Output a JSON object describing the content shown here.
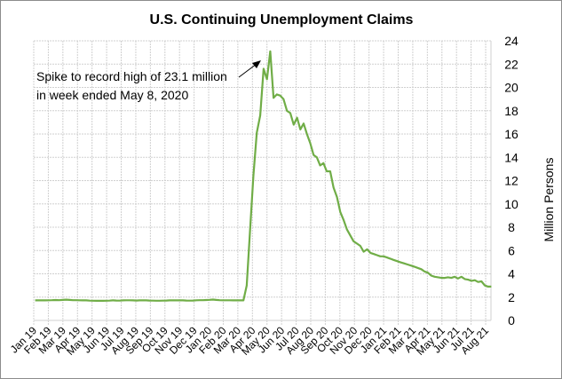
{
  "chart_data": {
    "type": "line",
    "title": "U.S. Continuing Unemployment Claims",
    "xlabel": "",
    "ylabel": "Million Persons",
    "ylim": [
      0,
      24
    ],
    "yticks": [
      0,
      2,
      4,
      6,
      8,
      10,
      12,
      14,
      16,
      18,
      20,
      22,
      24
    ],
    "y_axis_position": "right",
    "grid": true,
    "line_color": "#70ad47",
    "categories": [
      "Jan 19",
      "Feb 19",
      "Mar 19",
      "Apr 19",
      "May 19",
      "Jun 19",
      "Jul 19",
      "Aug 19",
      "Sep 19",
      "Oct 19",
      "Nov 19",
      "Dec 19",
      "Jan 20",
      "Feb 20",
      "Mar 20",
      "Apr 20",
      "May 20",
      "Jun 20",
      "Jul 20",
      "Aug 20",
      "Sep 20",
      "Oct 20",
      "Nov 20",
      "Dec 20",
      "Jan 21",
      "Feb 21",
      "Mar 21",
      "Apr 21",
      "May 21",
      "Jun 21",
      "Jul 21",
      "Aug 21"
    ],
    "annotation": {
      "lines": [
        "Spike to record high of 23.1 million",
        "in week ended May 8, 2020"
      ],
      "points_to": [
        "2020-05-08",
        23.1
      ]
    },
    "points": [
      [
        "2019-01-04",
        1.72
      ],
      [
        "2019-01-11",
        1.72
      ],
      [
        "2019-01-18",
        1.73
      ],
      [
        "2019-01-25",
        1.72
      ],
      [
        "2019-02-01",
        1.73
      ],
      [
        "2019-02-08",
        1.74
      ],
      [
        "2019-02-15",
        1.75
      ],
      [
        "2019-02-22",
        1.74
      ],
      [
        "2019-03-01",
        1.76
      ],
      [
        "2019-03-08",
        1.78
      ],
      [
        "2019-03-15",
        1.76
      ],
      [
        "2019-03-22",
        1.74
      ],
      [
        "2019-03-29",
        1.74
      ],
      [
        "2019-04-05",
        1.73
      ],
      [
        "2019-04-12",
        1.72
      ],
      [
        "2019-04-19",
        1.72
      ],
      [
        "2019-04-26",
        1.7
      ],
      [
        "2019-05-03",
        1.69
      ],
      [
        "2019-05-10",
        1.68
      ],
      [
        "2019-05-17",
        1.68
      ],
      [
        "2019-05-24",
        1.68
      ],
      [
        "2019-05-31",
        1.69
      ],
      [
        "2019-06-07",
        1.7
      ],
      [
        "2019-06-14",
        1.72
      ],
      [
        "2019-06-21",
        1.71
      ],
      [
        "2019-06-28",
        1.7
      ],
      [
        "2019-07-05",
        1.72
      ],
      [
        "2019-07-12",
        1.73
      ],
      [
        "2019-07-19",
        1.73
      ],
      [
        "2019-07-26",
        1.72
      ],
      [
        "2019-08-02",
        1.71
      ],
      [
        "2019-08-09",
        1.72
      ],
      [
        "2019-08-16",
        1.73
      ],
      [
        "2019-08-23",
        1.72
      ],
      [
        "2019-08-30",
        1.71
      ],
      [
        "2019-09-06",
        1.7
      ],
      [
        "2019-09-13",
        1.69
      ],
      [
        "2019-09-20",
        1.69
      ],
      [
        "2019-09-27",
        1.7
      ],
      [
        "2019-10-04",
        1.71
      ],
      [
        "2019-10-11",
        1.72
      ],
      [
        "2019-10-18",
        1.72
      ],
      [
        "2019-10-25",
        1.72
      ],
      [
        "2019-11-01",
        1.72
      ],
      [
        "2019-11-08",
        1.72
      ],
      [
        "2019-11-15",
        1.71
      ],
      [
        "2019-11-22",
        1.7
      ],
      [
        "2019-11-29",
        1.71
      ],
      [
        "2019-12-06",
        1.73
      ],
      [
        "2019-12-13",
        1.74
      ],
      [
        "2019-12-20",
        1.74
      ],
      [
        "2019-12-27",
        1.75
      ],
      [
        "2020-01-03",
        1.77
      ],
      [
        "2020-01-10",
        1.79
      ],
      [
        "2020-01-17",
        1.76
      ],
      [
        "2020-01-24",
        1.74
      ],
      [
        "2020-01-31",
        1.73
      ],
      [
        "2020-02-07",
        1.73
      ],
      [
        "2020-02-14",
        1.73
      ],
      [
        "2020-02-21",
        1.72
      ],
      [
        "2020-02-28",
        1.72
      ],
      [
        "2020-03-06",
        1.72
      ],
      [
        "2020-03-13",
        1.72
      ],
      [
        "2020-03-20",
        3.0
      ],
      [
        "2020-03-27",
        7.8
      ],
      [
        "2020-04-03",
        12.4
      ],
      [
        "2020-04-10",
        16.1
      ],
      [
        "2020-04-17",
        17.6
      ],
      [
        "2020-04-24",
        21.6
      ],
      [
        "2020-05-01",
        20.7
      ],
      [
        "2020-05-08",
        23.1
      ],
      [
        "2020-05-15",
        19.1
      ],
      [
        "2020-05-22",
        19.4
      ],
      [
        "2020-05-29",
        19.3
      ],
      [
        "2020-06-05",
        19.0
      ],
      [
        "2020-06-12",
        18.0
      ],
      [
        "2020-06-19",
        17.8
      ],
      [
        "2020-06-26",
        16.8
      ],
      [
        "2020-07-03",
        17.4
      ],
      [
        "2020-07-10",
        16.4
      ],
      [
        "2020-07-17",
        16.9
      ],
      [
        "2020-07-24",
        16.0
      ],
      [
        "2020-07-31",
        15.2
      ],
      [
        "2020-08-07",
        14.2
      ],
      [
        "2020-08-14",
        14.0
      ],
      [
        "2020-08-21",
        13.3
      ],
      [
        "2020-08-28",
        13.5
      ],
      [
        "2020-09-04",
        12.8
      ],
      [
        "2020-09-11",
        12.8
      ],
      [
        "2020-09-18",
        11.4
      ],
      [
        "2020-09-25",
        10.6
      ],
      [
        "2020-10-02",
        9.3
      ],
      [
        "2020-10-09",
        8.6
      ],
      [
        "2020-10-16",
        7.8
      ],
      [
        "2020-10-23",
        7.3
      ],
      [
        "2020-10-30",
        6.8
      ],
      [
        "2020-11-06",
        6.6
      ],
      [
        "2020-11-13",
        6.4
      ],
      [
        "2020-11-20",
        5.9
      ],
      [
        "2020-11-27",
        6.1
      ],
      [
        "2020-12-04",
        5.8
      ],
      [
        "2020-12-11",
        5.7
      ],
      [
        "2020-12-18",
        5.6
      ],
      [
        "2020-12-25",
        5.5
      ],
      [
        "2021-01-01",
        5.5
      ],
      [
        "2021-01-08",
        5.4
      ],
      [
        "2021-01-15",
        5.3
      ],
      [
        "2021-01-22",
        5.2
      ],
      [
        "2021-01-29",
        5.1
      ],
      [
        "2021-02-05",
        5.0
      ],
      [
        "2021-02-12",
        4.9
      ],
      [
        "2021-02-19",
        4.8
      ],
      [
        "2021-02-26",
        4.7
      ],
      [
        "2021-03-05",
        4.6
      ],
      [
        "2021-03-12",
        4.5
      ],
      [
        "2021-03-19",
        4.4
      ],
      [
        "2021-03-26",
        4.2
      ],
      [
        "2021-04-02",
        4.1
      ],
      [
        "2021-04-09",
        3.85
      ],
      [
        "2021-04-16",
        3.75
      ],
      [
        "2021-04-23",
        3.7
      ],
      [
        "2021-04-30",
        3.65
      ],
      [
        "2021-05-07",
        3.65
      ],
      [
        "2021-05-14",
        3.7
      ],
      [
        "2021-05-21",
        3.65
      ],
      [
        "2021-05-28",
        3.75
      ],
      [
        "2021-06-04",
        3.6
      ],
      [
        "2021-06-11",
        3.75
      ],
      [
        "2021-06-18",
        3.55
      ],
      [
        "2021-06-25",
        3.5
      ],
      [
        "2021-07-02",
        3.4
      ],
      [
        "2021-07-09",
        3.45
      ],
      [
        "2021-07-16",
        3.3
      ],
      [
        "2021-07-23",
        3.35
      ],
      [
        "2021-07-30",
        3.0
      ],
      [
        "2021-08-06",
        2.9
      ],
      [
        "2021-08-13",
        2.9
      ]
    ]
  }
}
